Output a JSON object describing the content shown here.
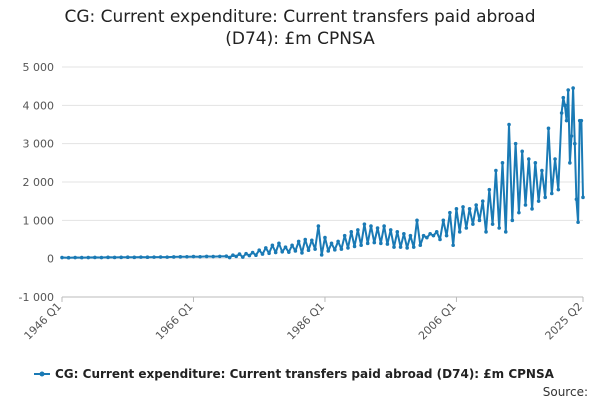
{
  "chart_data": {
    "type": "line",
    "title_lines": [
      "CG: Current expenditure: Current transfers paid abroad",
      "(D74): £m CPNSA"
    ],
    "title": "CG: Current expenditure: Current transfers paid abroad (D74): £m CPNSA",
    "xlabel": "",
    "ylabel": "",
    "ylim": [
      -1000,
      5000
    ],
    "yticks": [
      5000,
      4000,
      3000,
      2000,
      1000,
      0,
      -1000
    ],
    "ytick_labels": [
      "5 000",
      "4 000",
      "3 000",
      "2 000",
      "1 000",
      "0",
      "-1 000"
    ],
    "xlim": [
      1946.0,
      2025.25
    ],
    "xticks": [
      1946.0,
      1966.0,
      1986.0,
      2006.0,
      2025.25
    ],
    "xtick_labels": [
      "1946 Q1",
      "1966 Q1",
      "1986 Q1",
      "2006 Q1",
      "2025 Q2"
    ],
    "grid": true,
    "legend_position": "bottom",
    "series": [
      {
        "name": "CG: Current expenditure: Current transfers paid abroad (D74): £m CPNSA",
        "color": "#1a7ab5",
        "points": [
          [
            1946.0,
            30
          ],
          [
            1947.0,
            25
          ],
          [
            1948.0,
            30
          ],
          [
            1949.0,
            28
          ],
          [
            1950.0,
            30
          ],
          [
            1951.0,
            32
          ],
          [
            1952.0,
            30
          ],
          [
            1953.0,
            35
          ],
          [
            1954.0,
            32
          ],
          [
            1955.0,
            35
          ],
          [
            1956.0,
            38
          ],
          [
            1957.0,
            35
          ],
          [
            1958.0,
            40
          ],
          [
            1959.0,
            38
          ],
          [
            1960.0,
            40
          ],
          [
            1961.0,
            42
          ],
          [
            1962.0,
            40
          ],
          [
            1963.0,
            45
          ],
          [
            1964.0,
            48
          ],
          [
            1965.0,
            50
          ],
          [
            1966.0,
            55
          ],
          [
            1967.0,
            50
          ],
          [
            1968.0,
            58
          ],
          [
            1969.0,
            55
          ],
          [
            1970.0,
            60
          ],
          [
            1971.0,
            65
          ],
          [
            1971.5,
            30
          ],
          [
            1972.0,
            90
          ],
          [
            1972.5,
            60
          ],
          [
            1973.0,
            120
          ],
          [
            1973.5,
            40
          ],
          [
            1974.0,
            130
          ],
          [
            1974.5,
            80
          ],
          [
            1975.0,
            160
          ],
          [
            1975.5,
            90
          ],
          [
            1976.0,
            220
          ],
          [
            1976.5,
            120
          ],
          [
            1977.0,
            280
          ],
          [
            1977.5,
            140
          ],
          [
            1978.0,
            350
          ],
          [
            1978.5,
            160
          ],
          [
            1979.0,
            400
          ],
          [
            1979.5,
            180
          ],
          [
            1980.0,
            300
          ],
          [
            1980.5,
            170
          ],
          [
            1981.0,
            350
          ],
          [
            1981.5,
            200
          ],
          [
            1982.0,
            450
          ],
          [
            1982.5,
            150
          ],
          [
            1983.0,
            500
          ],
          [
            1983.5,
            220
          ],
          [
            1984.0,
            480
          ],
          [
            1984.5,
            250
          ],
          [
            1985.0,
            850
          ],
          [
            1985.5,
            100
          ],
          [
            1986.0,
            550
          ],
          [
            1986.5,
            200
          ],
          [
            1987.0,
            400
          ],
          [
            1987.5,
            230
          ],
          [
            1988.0,
            450
          ],
          [
            1988.5,
            250
          ],
          [
            1989.0,
            600
          ],
          [
            1989.5,
            280
          ],
          [
            1990.0,
            700
          ],
          [
            1990.5,
            320
          ],
          [
            1991.0,
            750
          ],
          [
            1991.5,
            350
          ],
          [
            1992.0,
            900
          ],
          [
            1992.5,
            400
          ],
          [
            1993.0,
            850
          ],
          [
            1993.5,
            420
          ],
          [
            1994.0,
            800
          ],
          [
            1994.5,
            400
          ],
          [
            1995.0,
            850
          ],
          [
            1995.5,
            380
          ],
          [
            1996.0,
            750
          ],
          [
            1996.5,
            300
          ],
          [
            1997.0,
            700
          ],
          [
            1997.5,
            300
          ],
          [
            1998.0,
            650
          ],
          [
            1998.5,
            280
          ],
          [
            1999.0,
            600
          ],
          [
            1999.5,
            300
          ],
          [
            2000.0,
            1000
          ],
          [
            2000.5,
            350
          ],
          [
            2001.0,
            600
          ],
          [
            2001.5,
            550
          ],
          [
            2002.0,
            650
          ],
          [
            2002.5,
            600
          ],
          [
            2003.0,
            700
          ],
          [
            2003.5,
            500
          ],
          [
            2004.0,
            1000
          ],
          [
            2004.5,
            600
          ],
          [
            2005.0,
            1200
          ],
          [
            2005.5,
            350
          ],
          [
            2006.0,
            1300
          ],
          [
            2006.5,
            700
          ],
          [
            2007.0,
            1350
          ],
          [
            2007.5,
            800
          ],
          [
            2008.0,
            1300
          ],
          [
            2008.5,
            900
          ],
          [
            2009.0,
            1400
          ],
          [
            2009.5,
            1000
          ],
          [
            2010.0,
            1500
          ],
          [
            2010.5,
            700
          ],
          [
            2011.0,
            1800
          ],
          [
            2011.5,
            900
          ],
          [
            2012.0,
            2300
          ],
          [
            2012.5,
            800
          ],
          [
            2013.0,
            2500
          ],
          [
            2013.5,
            700
          ],
          [
            2014.0,
            3500
          ],
          [
            2014.5,
            1000
          ],
          [
            2015.0,
            3000
          ],
          [
            2015.5,
            1200
          ],
          [
            2016.0,
            2800
          ],
          [
            2016.5,
            1400
          ],
          [
            2017.0,
            2600
          ],
          [
            2017.5,
            1300
          ],
          [
            2018.0,
            2500
          ],
          [
            2018.5,
            1500
          ],
          [
            2019.0,
            2300
          ],
          [
            2019.5,
            1600
          ],
          [
            2020.0,
            3400
          ],
          [
            2020.5,
            1700
          ],
          [
            2021.0,
            2600
          ],
          [
            2021.5,
            1800
          ],
          [
            2022.0,
            3800
          ],
          [
            2022.25,
            4200
          ],
          [
            2022.5,
            4000
          ],
          [
            2022.75,
            3600
          ],
          [
            2023.0,
            4400
          ],
          [
            2023.25,
            2500
          ],
          [
            2023.5,
            3200
          ],
          [
            2023.75,
            4450
          ],
          [
            2024.0,
            3000
          ],
          [
            2024.25,
            1550
          ],
          [
            2024.5,
            950
          ],
          [
            2024.75,
            3600
          ],
          [
            2025.0,
            3600
          ],
          [
            2025.25,
            1600
          ]
        ]
      }
    ],
    "source_label": "Source:"
  }
}
